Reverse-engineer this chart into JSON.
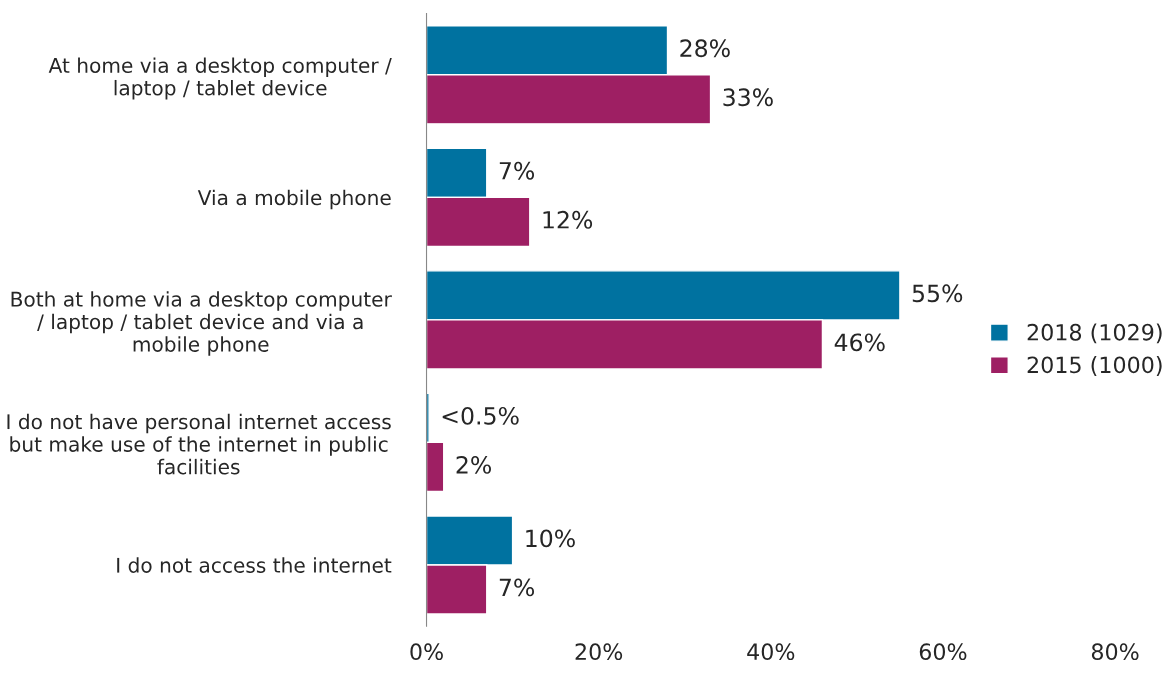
{
  "chart_data": {
    "type": "bar",
    "orientation": "horizontal",
    "categories": [
      "At home via a desktop computer / laptop / tablet device",
      "Via a mobile phone",
      "Both at home via a desktop computer / laptop / tablet device and via a mobile phone",
      "I do not have personal internet access but make use of the internet in public facilities",
      "I do not access the internet"
    ],
    "series": [
      {
        "name": "2018 (1029)",
        "color": "#0072a0",
        "values": [
          28,
          7,
          55,
          0.3,
          10
        ],
        "value_labels": [
          "28%",
          "7%",
          "55%",
          "<0.5%",
          "10%"
        ]
      },
      {
        "name": "2015 (1000)",
        "color": "#9e1f63",
        "values": [
          33,
          12,
          46,
          2,
          7
        ],
        "value_labels": [
          "33%",
          "12%",
          "46%",
          "2%",
          "7%"
        ]
      }
    ],
    "xlim": [
      0,
      80
    ],
    "xticks": [
      {
        "value": 0,
        "label": "0%"
      },
      {
        "value": 20,
        "label": "20%"
      },
      {
        "value": 40,
        "label": "40%"
      },
      {
        "value": 60,
        "label": "60%"
      },
      {
        "value": 80,
        "label": "80%"
      }
    ],
    "grid": false,
    "legend": "right"
  }
}
